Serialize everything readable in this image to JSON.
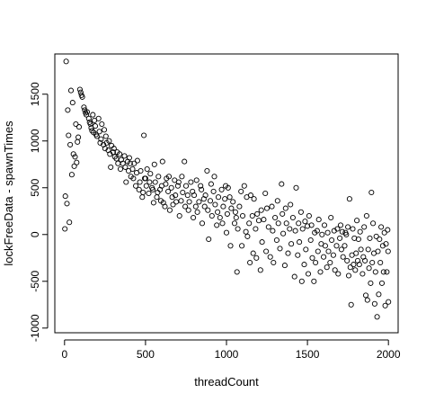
{
  "chart_data": {
    "type": "scatter",
    "title": "",
    "xlabel": "threadCount",
    "ylabel": "lockFreeData - spawnTimes",
    "xlim": [
      -60,
      2060
    ],
    "ylim": [
      -1050,
      1930
    ],
    "x_ticks": [
      0,
      500,
      1000,
      1500,
      2000
    ],
    "y_ticks": [
      -1000,
      -500,
      0,
      500,
      1000,
      1500
    ],
    "x_tick_labels": [
      "0",
      "500",
      "1000",
      "1500",
      "2000"
    ],
    "y_tick_labels": [
      "-1000",
      "-500",
      "0",
      "500",
      "1000",
      "1500"
    ],
    "grid": false,
    "legend": "none",
    "marker": "open-circle",
    "series": [
      {
        "points": [
          [
            2,
            60
          ],
          [
            5,
            410
          ],
          [
            10,
            1850
          ],
          [
            15,
            330
          ],
          [
            20,
            1330
          ],
          [
            25,
            1060
          ],
          [
            30,
            130
          ],
          [
            35,
            960
          ],
          [
            40,
            1540
          ],
          [
            45,
            640
          ],
          [
            50,
            1410
          ],
          [
            55,
            860
          ],
          [
            60,
            730
          ],
          [
            65,
            830
          ],
          [
            70,
            1180
          ],
          [
            75,
            770
          ],
          [
            80,
            990
          ],
          [
            85,
            1040
          ],
          [
            90,
            1150
          ],
          [
            95,
            1550
          ],
          [
            100,
            1520
          ],
          [
            105,
            1490
          ],
          [
            110,
            1470
          ],
          [
            120,
            1360
          ],
          [
            125,
            1330
          ],
          [
            130,
            1300
          ],
          [
            135,
            1280
          ],
          [
            140,
            1310
          ],
          [
            150,
            1240
          ],
          [
            155,
            1200
          ],
          [
            160,
            1180
          ],
          [
            165,
            1140
          ],
          [
            170,
            1110
          ],
          [
            175,
            1280
          ],
          [
            180,
            1090
          ],
          [
            185,
            1220
          ],
          [
            190,
            1160
          ],
          [
            195,
            1070
          ],
          [
            200,
            1050
          ],
          [
            210,
            1240
          ],
          [
            215,
            1100
          ],
          [
            220,
            980
          ],
          [
            225,
            1020
          ],
          [
            230,
            1180
          ],
          [
            240,
            960
          ],
          [
            245,
            1120
          ],
          [
            250,
            920
          ],
          [
            255,
            1050
          ],
          [
            260,
            980
          ],
          [
            270,
            900
          ],
          [
            275,
            1000
          ],
          [
            280,
            860
          ],
          [
            285,
            720
          ],
          [
            290,
            950
          ],
          [
            300,
            880
          ],
          [
            305,
            920
          ],
          [
            310,
            830
          ],
          [
            320,
            810
          ],
          [
            325,
            880
          ],
          [
            330,
            760
          ],
          [
            340,
            860
          ],
          [
            345,
            700
          ],
          [
            350,
            800
          ],
          [
            360,
            760
          ],
          [
            370,
            840
          ],
          [
            375,
            720
          ],
          [
            380,
            560
          ],
          [
            390,
            780
          ],
          [
            395,
            680
          ],
          [
            400,
            820
          ],
          [
            405,
            760
          ],
          [
            410,
            620
          ],
          [
            420,
            700
          ],
          [
            425,
            600
          ],
          [
            430,
            760
          ],
          [
            440,
            520
          ],
          [
            445,
            660
          ],
          [
            450,
            790
          ],
          [
            460,
            480
          ],
          [
            465,
            560
          ],
          [
            470,
            680
          ],
          [
            480,
            400
          ],
          [
            485,
            450
          ],
          [
            490,
            1060
          ],
          [
            495,
            600
          ],
          [
            500,
            600
          ],
          [
            505,
            520
          ],
          [
            510,
            700
          ],
          [
            520,
            440
          ],
          [
            525,
            560
          ],
          [
            530,
            650
          ],
          [
            540,
            500
          ],
          [
            545,
            480
          ],
          [
            550,
            340
          ],
          [
            555,
            750
          ],
          [
            560,
            560
          ],
          [
            570,
            400
          ],
          [
            575,
            450
          ],
          [
            580,
            620
          ],
          [
            590,
            480
          ],
          [
            595,
            360
          ],
          [
            600,
            520
          ],
          [
            605,
            780
          ],
          [
            610,
            340
          ],
          [
            620,
            300
          ],
          [
            625,
            540
          ],
          [
            630,
            600
          ],
          [
            640,
            460
          ],
          [
            645,
            620
          ],
          [
            650,
            260
          ],
          [
            660,
            500
          ],
          [
            665,
            400
          ],
          [
            670,
            320
          ],
          [
            680,
            580
          ],
          [
            685,
            420
          ],
          [
            690,
            350
          ],
          [
            700,
            520
          ],
          [
            705,
            560
          ],
          [
            710,
            200
          ],
          [
            720,
            360
          ],
          [
            725,
            620
          ],
          [
            730,
            450
          ],
          [
            740,
            780
          ],
          [
            745,
            300
          ],
          [
            750,
            520
          ],
          [
            760,
            420
          ],
          [
            765,
            260
          ],
          [
            770,
            350
          ],
          [
            780,
            560
          ],
          [
            790,
            460
          ],
          [
            795,
            180
          ],
          [
            800,
            420
          ],
          [
            810,
            300
          ],
          [
            815,
            580
          ],
          [
            820,
            240
          ],
          [
            830,
            350
          ],
          [
            840,
            520
          ],
          [
            845,
            480
          ],
          [
            850,
            120
          ],
          [
            860,
            380
          ],
          [
            865,
            300
          ],
          [
            870,
            420
          ],
          [
            880,
            680
          ],
          [
            885,
            260
          ],
          [
            890,
            -50
          ],
          [
            900,
            360
          ],
          [
            905,
            540
          ],
          [
            910,
            200
          ],
          [
            920,
            460
          ],
          [
            925,
            620
          ],
          [
            930,
            320
          ],
          [
            940,
            100
          ],
          [
            945,
            240
          ],
          [
            950,
            400
          ],
          [
            960,
            180
          ],
          [
            970,
            480
          ],
          [
            975,
            120
          ],
          [
            980,
            300
          ],
          [
            990,
            380
          ],
          [
            995,
            520
          ],
          [
            1000,
            20
          ],
          [
            1005,
            220
          ],
          [
            1010,
            500
          ],
          [
            1020,
            400
          ],
          [
            1025,
            -120
          ],
          [
            1030,
            280
          ],
          [
            1040,
            350
          ],
          [
            1050,
            120
          ],
          [
            1055,
            240
          ],
          [
            1060,
            180
          ],
          [
            1065,
            -400
          ],
          [
            1070,
            60
          ],
          [
            1080,
            300
          ],
          [
            1090,
            460
          ],
          [
            1095,
            -120
          ],
          [
            1100,
            200
          ],
          [
            1110,
            520
          ],
          [
            1120,
            30
          ],
          [
            1125,
            400
          ],
          [
            1130,
            -20
          ],
          [
            1140,
            120
          ],
          [
            1145,
            -300
          ],
          [
            1150,
            420
          ],
          [
            1160,
            200
          ],
          [
            1165,
            -200
          ],
          [
            1170,
            380
          ],
          [
            1180,
            60
          ],
          [
            1185,
            -250
          ],
          [
            1190,
            220
          ],
          [
            1200,
            150
          ],
          [
            1210,
            -380
          ],
          [
            1215,
            260
          ],
          [
            1220,
            -80
          ],
          [
            1230,
            160
          ],
          [
            1240,
            440
          ],
          [
            1245,
            -180
          ],
          [
            1250,
            280
          ],
          [
            1260,
            80
          ],
          [
            1270,
            -240
          ],
          [
            1280,
            300
          ],
          [
            1285,
            40
          ],
          [
            1290,
            -300
          ],
          [
            1300,
            180
          ],
          [
            1310,
            -60
          ],
          [
            1315,
            360
          ],
          [
            1320,
            120
          ],
          [
            1330,
            -150
          ],
          [
            1340,
            540
          ],
          [
            1345,
            220
          ],
          [
            1350,
            10
          ],
          [
            1360,
            -330
          ],
          [
            1365,
            280
          ],
          [
            1370,
            120
          ],
          [
            1380,
            -200
          ],
          [
            1390,
            60
          ],
          [
            1395,
            320
          ],
          [
            1400,
            -100
          ],
          [
            1410,
            180
          ],
          [
            1420,
            -450
          ],
          [
            1425,
            40
          ],
          [
            1430,
            500
          ],
          [
            1440,
            -220
          ],
          [
            1445,
            120
          ],
          [
            1450,
            -80
          ],
          [
            1460,
            240
          ],
          [
            1465,
            -500
          ],
          [
            1470,
            60
          ],
          [
            1480,
            -320
          ],
          [
            1485,
            140
          ],
          [
            1490,
            -160
          ],
          [
            1500,
            90
          ],
          [
            1505,
            -420
          ],
          [
            1510,
            200
          ],
          [
            1520,
            -60
          ],
          [
            1525,
            100
          ],
          [
            1530,
            -250
          ],
          [
            1540,
            -500
          ],
          [
            1545,
            20
          ],
          [
            1550,
            -300
          ],
          [
            1560,
            40
          ],
          [
            1565,
            -180
          ],
          [
            1570,
            160
          ],
          [
            1580,
            -400
          ],
          [
            1585,
            -100
          ],
          [
            1590,
            0
          ],
          [
            1600,
            -240
          ],
          [
            1605,
            100
          ],
          [
            1610,
            -120
          ],
          [
            1620,
            -350
          ],
          [
            1625,
            20
          ],
          [
            1630,
            -180
          ],
          [
            1640,
            -300
          ],
          [
            1645,
            180
          ],
          [
            1650,
            -60
          ],
          [
            1660,
            -220
          ],
          [
            1665,
            40
          ],
          [
            1670,
            -380
          ],
          [
            1680,
            -120
          ],
          [
            1685,
            60
          ],
          [
            1690,
            -420
          ],
          [
            1700,
            -40
          ],
          [
            1705,
            100
          ],
          [
            1710,
            -160
          ],
          [
            1715,
            30
          ],
          [
            1720,
            -240
          ],
          [
            1730,
            -120
          ],
          [
            1735,
            20
          ],
          [
            1740,
            0
          ],
          [
            1745,
            -280
          ],
          [
            1750,
            80
          ],
          [
            1755,
            -440
          ],
          [
            1760,
            380
          ],
          [
            1765,
            -350
          ],
          [
            1770,
            -750
          ],
          [
            1775,
            -220
          ],
          [
            1780,
            60
          ],
          [
            1785,
            -320
          ],
          [
            1790,
            -40
          ],
          [
            1795,
            -380
          ],
          [
            1800,
            -200
          ],
          [
            1805,
            150
          ],
          [
            1810,
            -280
          ],
          [
            1815,
            -50
          ],
          [
            1820,
            -320
          ],
          [
            1825,
            30
          ],
          [
            1830,
            -160
          ],
          [
            1840,
            -420
          ],
          [
            1845,
            -240
          ],
          [
            1850,
            80
          ],
          [
            1855,
            -280
          ],
          [
            1860,
            -650
          ],
          [
            1865,
            200
          ],
          [
            1870,
            -700
          ],
          [
            1875,
            -160
          ],
          [
            1880,
            -360
          ],
          [
            1885,
            -40
          ],
          [
            1890,
            -520
          ],
          [
            1895,
            450
          ],
          [
            1900,
            -300
          ],
          [
            1905,
            120
          ],
          [
            1910,
            -200
          ],
          [
            1915,
            -740
          ],
          [
            1920,
            -400
          ],
          [
            1925,
            -20
          ],
          [
            1930,
            -880
          ],
          [
            1935,
            -180
          ],
          [
            1940,
            -640
          ],
          [
            1945,
            -50
          ],
          [
            1950,
            -300
          ],
          [
            1955,
            80
          ],
          [
            1960,
            -520
          ],
          [
            1965,
            -120
          ],
          [
            1970,
            -400
          ],
          [
            1975,
            20
          ],
          [
            1980,
            -760
          ],
          [
            1985,
            -100
          ],
          [
            1990,
            -400
          ],
          [
            1995,
            50
          ],
          [
            2000,
            -720
          ],
          [
            1998,
            -180
          ]
        ]
      }
    ]
  }
}
